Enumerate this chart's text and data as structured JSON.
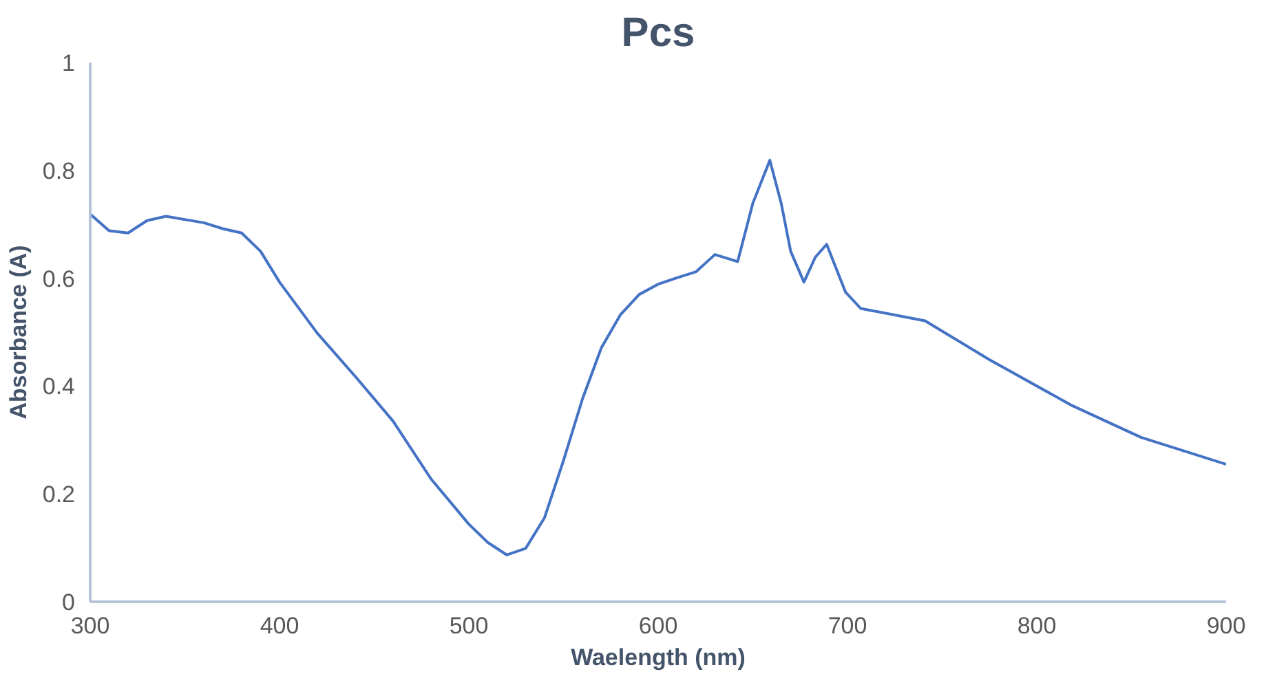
{
  "chart_data": {
    "type": "line",
    "title": "Pcs",
    "xlabel": "Waelength (nm)",
    "ylabel": "Absorbance (A)",
    "x": [
      300,
      310,
      320,
      330,
      340,
      360,
      370,
      380,
      390,
      400,
      420,
      440,
      460,
      480,
      500,
      510,
      520,
      530,
      540,
      550,
      560,
      570,
      580,
      590,
      600,
      610,
      620,
      630,
      642,
      650,
      659,
      665,
      670,
      677,
      683,
      689,
      699,
      707,
      741,
      775,
      818,
      855,
      900
    ],
    "series": [
      {
        "color": "#4472c4",
        "values": [
          0.719,
          0.688,
          0.684,
          0.707,
          0.715,
          0.703,
          0.692,
          0.684,
          0.65,
          0.593,
          0.498,
          0.418,
          0.335,
          0.228,
          0.144,
          0.11,
          0.087,
          0.099,
          0.156,
          0.262,
          0.376,
          0.471,
          0.532,
          0.57,
          0.589,
          0.601,
          0.612,
          0.644,
          0.631,
          0.739,
          0.819,
          0.739,
          0.65,
          0.593,
          0.639,
          0.663,
          0.574,
          0.544,
          0.521,
          0.449,
          0.365,
          0.305,
          0.255
        ]
      }
    ],
    "xlim": [
      300,
      900
    ],
    "xticks": [
      300,
      400,
      500,
      600,
      700,
      800,
      900
    ],
    "ylim": [
      0,
      1
    ],
    "yticks": [
      0,
      0.2,
      0.4,
      0.6,
      0.8,
      1
    ],
    "grid": false,
    "marker": "none",
    "line_style": "solid"
  }
}
